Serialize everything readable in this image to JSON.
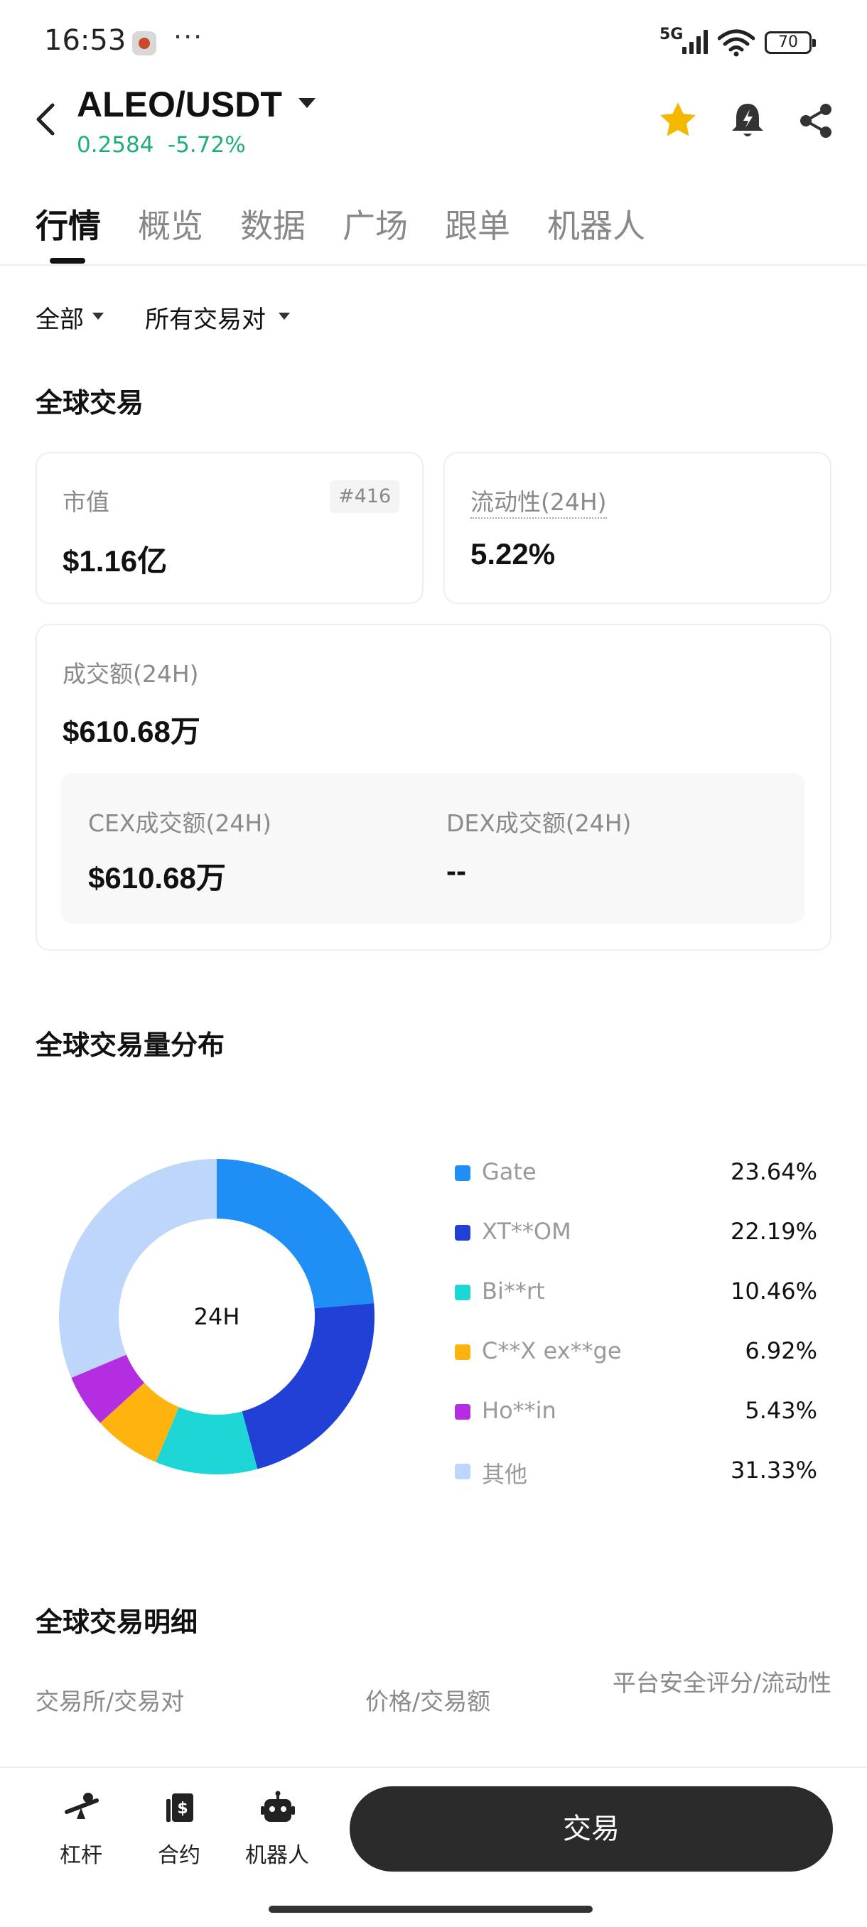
{
  "status_bar": {
    "time": "16:53",
    "dots": "···",
    "network": "5G",
    "battery": "70"
  },
  "header": {
    "pair": "ALEO/USDT",
    "price": "0.2584",
    "change": "-5.72%",
    "accent_up": "#1fae78",
    "favorite_color": "#f5b800"
  },
  "tabs": [
    {
      "label": "行情",
      "active": true
    },
    {
      "label": "概览",
      "active": false
    },
    {
      "label": "数据",
      "active": false
    },
    {
      "label": "广场",
      "active": false
    },
    {
      "label": "跟单",
      "active": false
    },
    {
      "label": "机器人",
      "active": false
    }
  ],
  "filters": {
    "scope": "全部",
    "pairs": "所有交易对"
  },
  "global_trading": {
    "title": "全球交易",
    "market_cap": {
      "label": "市值",
      "value": "$1.16亿",
      "rank": "#416"
    },
    "liquidity": {
      "label": "流动性(24H)",
      "value": "5.22%"
    },
    "volume": {
      "label": "成交额(24H)",
      "value": "$610.68万"
    },
    "cex": {
      "label": "CEX成交额(24H)",
      "value": "$610.68万"
    },
    "dex": {
      "label": "DEX成交额(24H)",
      "value": "--"
    }
  },
  "distribution": {
    "title": "全球交易量分布",
    "center_label": "24H"
  },
  "chart_data": {
    "type": "pie",
    "title": "",
    "categories": [
      "Gate",
      "XT**OM",
      "Bi**rt",
      "C**X ex**ge",
      "Ho**in",
      "其他"
    ],
    "values": [
      23.64,
      22.19,
      10.46,
      6.92,
      5.43,
      31.33
    ],
    "labels": [
      "23.64%",
      "22.19%",
      "10.46%",
      "6.92%",
      "5.43%",
      "31.33%"
    ],
    "colors": [
      "#1f8ef5",
      "#2140d6",
      "#1fd6d6",
      "#ffb30f",
      "#b42de0",
      "#bed6f9"
    ],
    "donut": true,
    "legend": "right"
  },
  "details": {
    "title": "全球交易明细",
    "col_exchange": "交易所/交易对",
    "col_price": "价格/交易额",
    "col_score": "平台安全评分/流动性"
  },
  "bottom_nav": {
    "leverage": "杠杆",
    "futures": "合约",
    "bot": "机器人",
    "trade": "交易"
  }
}
